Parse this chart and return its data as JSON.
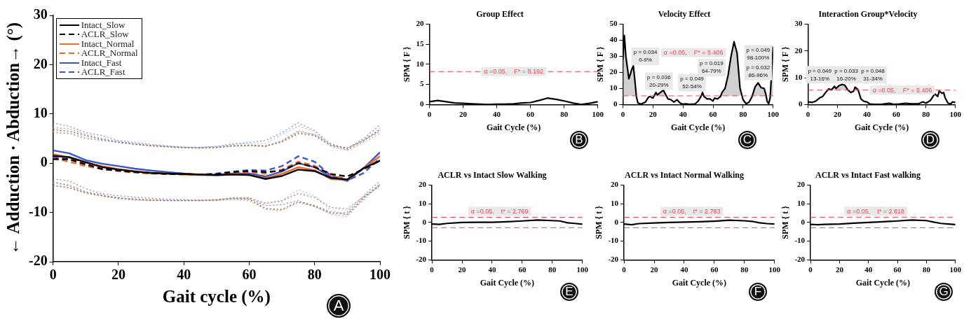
{
  "chart_data": [
    {
      "type": "line",
      "xlabel": "Gait cycle (%)",
      "ylabel": "← Adduction · Abduction→ (°)",
      "xlim": [
        0,
        100
      ],
      "ylim": [
        -20,
        30
      ],
      "xticks": [
        0,
        20,
        40,
        60,
        80,
        100
      ],
      "yticks": [
        -20,
        -10,
        0,
        10,
        20,
        30
      ],
      "legend": "top left",
      "annotations": [
        "A"
      ],
      "x": [
        0,
        5,
        10,
        15,
        20,
        25,
        30,
        35,
        40,
        45,
        50,
        55,
        60,
        65,
        70,
        75,
        80,
        85,
        90,
        95,
        100
      ],
      "series": [
        {
          "name": "Intact_Slow",
          "color": "#000000",
          "line_style": "solid",
          "values": [
            1.5,
            1.2,
            0.2,
            -0.8,
            -1.3,
            -1.7,
            -2.0,
            -2.1,
            -2.2,
            -2.3,
            -2.4,
            -2.3,
            -2.4,
            -3.2,
            -2.6,
            -1.3,
            -1.6,
            -3.0,
            -3.3,
            -1.0,
            0.5
          ]
        },
        {
          "name": "ACLR_Slow",
          "color": "#000000",
          "line_style": "dashed",
          "values": [
            0.8,
            0.8,
            -0.2,
            -1.2,
            -1.5,
            -1.8,
            -2.0,
            -2.2,
            -2.2,
            -2.3,
            -2.2,
            -1.8,
            -1.6,
            -1.8,
            -1.5,
            0.0,
            -0.8,
            -2.2,
            -2.7,
            -1.2,
            0.5
          ]
        },
        {
          "name": "Intact_Normal",
          "color": "#ee6a1e",
          "line_style": "solid",
          "values": [
            1.8,
            1.2,
            0.2,
            -0.6,
            -1.2,
            -1.6,
            -2.0,
            -2.1,
            -2.3,
            -2.4,
            -2.5,
            -2.3,
            -2.4,
            -3.0,
            -2.2,
            -0.8,
            -1.4,
            -3.2,
            -3.4,
            -1.0,
            1.4
          ]
        },
        {
          "name": "ACLR_Normal",
          "color": "#ee6a1e",
          "line_style": "dashed",
          "values": [
            1.0,
            0.3,
            -0.6,
            -1.2,
            -1.6,
            -1.9,
            -2.1,
            -2.2,
            -2.3,
            -2.3,
            -2.2,
            -1.9,
            -1.8,
            -2.1,
            -1.3,
            0.3,
            -0.5,
            -2.4,
            -3.3,
            -1.0,
            0.6
          ]
        },
        {
          "name": "Intact_Fast",
          "color": "#3a56c8",
          "line_style": "solid",
          "values": [
            2.6,
            2.0,
            0.6,
            -0.1,
            -0.6,
            -1.1,
            -1.5,
            -1.8,
            -2.1,
            -2.3,
            -2.3,
            -2.1,
            -2.1,
            -2.7,
            -1.7,
            0.0,
            -0.8,
            -2.8,
            -3.6,
            -1.0,
            2.2
          ]
        },
        {
          "name": "ACLR_Fast",
          "color": "#3a56c8",
          "line_style": "dashed",
          "values": [
            1.2,
            0.8,
            -0.4,
            -1.2,
            -1.5,
            -1.8,
            -2.0,
            -2.2,
            -2.2,
            -2.3,
            -2.1,
            -1.7,
            -1.4,
            -1.5,
            -0.6,
            1.4,
            0.3,
            -2.5,
            -3.5,
            -2.0,
            1.0
          ]
        },
        {
          "color": "#6e6e6e",
          "line_style": "dotted",
          "values": [
            6.8,
            6.5,
            5.6,
            4.8,
            4.3,
            3.9,
            3.6,
            3.4,
            3.2,
            3.1,
            3.2,
            3.5,
            3.7,
            3.5,
            4.3,
            6.0,
            5.6,
            3.6,
            3.1,
            4.6,
            6.8
          ]
        },
        {
          "color": "#6e6e6e",
          "line_style": "dotted",
          "values": [
            -4.5,
            -5.0,
            -6.0,
            -6.6,
            -7.0,
            -7.4,
            -7.5,
            -7.6,
            -7.6,
            -7.6,
            -7.5,
            -7.2,
            -7.3,
            -9.2,
            -9.4,
            -7.8,
            -8.6,
            -10.0,
            -10.4,
            -7.0,
            -4.5
          ]
        },
        {
          "color": "#a0a0a0",
          "line_style": "dotted",
          "values": [
            6.2,
            6.0,
            5.0,
            4.6,
            4.2,
            3.8,
            3.5,
            3.3,
            3.1,
            3.2,
            3.3,
            3.6,
            3.6,
            3.4,
            4.6,
            6.4,
            5.8,
            4.0,
            2.8,
            4.8,
            6.4
          ]
        },
        {
          "color": "#a0a0a0",
          "line_style": "dotted",
          "values": [
            -3.8,
            -4.6,
            -5.8,
            -6.4,
            -7.2,
            -7.2,
            -7.4,
            -7.5,
            -7.5,
            -7.5,
            -7.4,
            -7.0,
            -7.0,
            -8.2,
            -7.6,
            -6.2,
            -7.0,
            -9.0,
            -9.2,
            -6.8,
            -4.2
          ]
        },
        {
          "color": "#f0a070",
          "line_style": "dotted",
          "values": [
            7.2,
            7.0,
            5.8,
            5.0,
            4.2,
            3.8,
            3.5,
            3.3,
            3.1,
            3.0,
            3.1,
            3.4,
            3.5,
            3.4,
            4.4,
            6.6,
            5.8,
            3.4,
            2.6,
            4.2,
            6.0
          ]
        },
        {
          "color": "#f0a070",
          "line_style": "dotted",
          "values": [
            -3.8,
            -4.4,
            -5.8,
            -6.6,
            -7.2,
            -7.5,
            -7.6,
            -7.6,
            -7.6,
            -7.6,
            -7.6,
            -7.4,
            -7.6,
            -9.4,
            -9.6,
            -8.0,
            -8.8,
            -10.4,
            -10.8,
            -7.2,
            -4.4
          ]
        },
        {
          "color": "#f8c090",
          "line_style": "dotted",
          "values": [
            6.4,
            6.2,
            5.2,
            4.6,
            4.3,
            3.9,
            3.5,
            3.3,
            3.1,
            3.1,
            3.2,
            3.5,
            3.6,
            3.5,
            4.6,
            6.2,
            5.8,
            3.8,
            2.8,
            4.6,
            6.4
          ]
        },
        {
          "color": "#f8c090",
          "line_style": "dotted",
          "values": [
            -4.6,
            -5.0,
            -6.2,
            -6.8,
            -7.2,
            -7.4,
            -7.5,
            -7.6,
            -7.6,
            -7.5,
            -7.4,
            -7.0,
            -7.0,
            -8.2,
            -7.8,
            -6.0,
            -6.8,
            -9.0,
            -9.6,
            -6.8,
            -4.8
          ]
        },
        {
          "color": "#8090e0",
          "line_style": "dotted",
          "values": [
            8.2,
            7.5,
            6.2,
            5.6,
            4.6,
            4.2,
            3.8,
            3.5,
            3.3,
            3.2,
            3.4,
            3.9,
            4.2,
            4.6,
            6.2,
            8.2,
            6.6,
            3.8,
            3.0,
            5.0,
            7.8
          ]
        },
        {
          "color": "#8090e0",
          "line_style": "dotted",
          "values": [
            -3.2,
            -3.6,
            -5.2,
            -6.2,
            -6.6,
            -6.9,
            -7.1,
            -7.3,
            -7.4,
            -7.5,
            -7.4,
            -7.1,
            -7.2,
            -8.6,
            -8.4,
            -7.6,
            -8.8,
            -10.2,
            -10.0,
            -6.6,
            -3.6
          ]
        },
        {
          "color": "#b0bcf0",
          "line_style": "dotted",
          "values": [
            7.2,
            7.0,
            5.8,
            5.0,
            4.5,
            4.0,
            3.6,
            3.4,
            3.2,
            3.2,
            3.4,
            3.8,
            4.0,
            4.0,
            5.8,
            7.6,
            6.4,
            3.6,
            2.6,
            4.4,
            7.2
          ]
        },
        {
          "color": "#b0bcf0",
          "line_style": "dotted",
          "values": [
            -4.0,
            -4.6,
            -6.0,
            -6.6,
            -7.0,
            -7.3,
            -7.5,
            -7.6,
            -7.6,
            -7.6,
            -7.5,
            -7.1,
            -7.2,
            -8.0,
            -7.6,
            -5.4,
            -6.6,
            -9.6,
            -10.4,
            -7.6,
            -4.2
          ]
        }
      ]
    },
    {
      "type": "line",
      "title": "Group Effect",
      "xlabel": "Gait Cycle (%)",
      "ylabel": "SPM { F }",
      "xlim": [
        0,
        100
      ],
      "ylim": [
        0,
        20
      ],
      "xticks": [
        0,
        20,
        40,
        60,
        80,
        100
      ],
      "yticks": [
        0,
        5,
        10,
        15,
        20
      ],
      "annotations": [
        "B"
      ],
      "x": [
        0,
        5,
        10,
        15,
        20,
        25,
        30,
        35,
        40,
        45,
        50,
        55,
        60,
        65,
        70,
        75,
        80,
        85,
        90,
        95,
        100
      ],
      "series": [
        {
          "color": "#000000",
          "values": [
            0.7,
            1.0,
            0.7,
            0.4,
            0.3,
            0.2,
            0.1,
            0.0,
            0.1,
            0.1,
            0.2,
            0.4,
            0.5,
            1.0,
            1.6,
            1.3,
            0.9,
            0.4,
            0.0,
            0.3,
            0.7
          ]
        }
      ],
      "ref_lines": [
        {
          "axis": "y",
          "value": 8.192,
          "label": "α =0.05,    F* = 8.192",
          "color": "#ee4455",
          "line_style": "dashed"
        }
      ]
    },
    {
      "type": "line",
      "title": "Velocity Effect",
      "xlabel": "Gait Cycle (%)",
      "ylabel": "SPM { F }",
      "xlim": [
        0,
        100
      ],
      "ylim": [
        0,
        50
      ],
      "xticks": [
        0,
        20,
        40,
        60,
        80,
        100
      ],
      "yticks": [
        0,
        10,
        20,
        30,
        40,
        50
      ],
      "x": [
        0,
        1,
        2,
        4,
        6,
        7,
        8,
        9,
        10,
        12,
        15,
        17,
        18,
        20,
        22,
        23,
        25,
        27,
        28,
        30,
        32,
        34,
        36,
        38,
        40,
        42,
        44,
        48,
        50,
        52,
        53,
        54,
        56,
        58,
        60,
        61,
        63,
        65,
        66,
        68,
        70,
        72,
        74,
        76,
        78,
        80,
        82,
        84,
        86,
        88,
        90,
        91,
        92,
        94,
        95,
        96,
        97,
        98,
        100
      ],
      "series": [
        {
          "color": "#000000",
          "values": [
            28,
            43,
            30,
            16,
            22,
            24,
            15,
            5,
            1,
            0.3,
            1.5,
            4.5,
            5,
            4,
            7.5,
            6,
            7.5,
            9,
            7,
            3.5,
            3,
            1.5,
            3,
            1,
            0.2,
            0.5,
            0.1,
            0.3,
            2,
            5,
            7.5,
            5,
            3.5,
            3.5,
            2.2,
            4,
            3.5,
            5,
            7.5,
            10,
            18,
            30,
            39,
            32,
            10,
            3,
            0.5,
            1.5,
            5,
            11,
            13.5,
            12,
            10.5,
            10,
            7,
            2,
            0.5,
            4,
            36
          ]
        }
      ],
      "ref_lines": [
        {
          "axis": "y",
          "value": 5.406,
          "label": "α =0.05,    F* = 5.406",
          "color": "#ee4455",
          "line_style": "dashed"
        }
      ],
      "annotations": [
        "C",
        "p = 0.034\n0-9%",
        "p = 0.036\n20-29%",
        "p = 0.049\n52-54%",
        "p = 0.019\n64-79%",
        "p = 0.049\n98-100%",
        "p = 0.032\n86-96%"
      ]
    },
    {
      "type": "line",
      "title": "Interaction Group*Velocity",
      "xlabel": "Gait Cycle (%)",
      "ylabel": "SPM { F }",
      "xlim": [
        0,
        100
      ],
      "ylim": [
        0,
        30
      ],
      "xticks": [
        0,
        20,
        40,
        60,
        80,
        100
      ],
      "yticks": [
        0,
        10,
        20,
        30
      ],
      "x": [
        0,
        3,
        5,
        8,
        10,
        12,
        14,
        16,
        18,
        19,
        21,
        23,
        25,
        27,
        29,
        31,
        32,
        34,
        36,
        38,
        40,
        42,
        45,
        50,
        55,
        58,
        62,
        66,
        70,
        75,
        78,
        80,
        83,
        86,
        88,
        89,
        91,
        92,
        93,
        95,
        97,
        98,
        100
      ],
      "series": [
        {
          "color": "#000000",
          "values": [
            1,
            0.8,
            1.2,
            2.5,
            3,
            4.5,
            5.8,
            5.5,
            6.8,
            6,
            7,
            7.5,
            7.2,
            5.5,
            4.5,
            5,
            6.5,
            5.5,
            2,
            1.2,
            1,
            0.2,
            0.1,
            0.1,
            0.5,
            0.1,
            0.2,
            0.5,
            0.3,
            0.3,
            1,
            0.5,
            1.5,
            4,
            3,
            5,
            4.2,
            4.5,
            2.5,
            0.5,
            0.3,
            1,
            0.8
          ]
        }
      ],
      "ref_lines": [
        {
          "axis": "y",
          "value": 5.406,
          "label": "α =0.05,    F* = 5.406",
          "color": "#ee4455",
          "line_style": "dashed"
        }
      ],
      "annotations": [
        "D",
        "p = 0.049\n13-16%",
        "p = 0.033\n16-20%",
        "p = 0.048\n31-34%"
      ]
    },
    {
      "type": "line",
      "title": "ACLR vs Intact Slow Walking",
      "xlabel": "Gait Cycle (%)",
      "ylabel": "SPM { t }",
      "xlim": [
        0,
        100
      ],
      "ylim": [
        -20,
        20
      ],
      "xticks": [
        0,
        20,
        40,
        60,
        80,
        100
      ],
      "yticks": [
        -20,
        -10,
        0,
        10,
        20
      ],
      "annotations": [
        "E"
      ],
      "x": [
        0,
        5,
        10,
        20,
        30,
        40,
        50,
        60,
        70,
        80,
        85,
        90,
        95,
        100
      ],
      "series": [
        {
          "color": "#000000",
          "values": [
            -0.8,
            -1.0,
            -0.5,
            0,
            0.1,
            0.1,
            0.4,
            0.8,
            1.3,
            1.0,
            0.8,
            -0.2,
            -0.5,
            -0.9
          ]
        }
      ],
      "ref_lines": [
        {
          "axis": "y",
          "value": 2.769,
          "label": "α =0.05,    t* = 2.769",
          "color": "#ee4455",
          "line_style": "dashed"
        },
        {
          "axis": "y",
          "value": -2.769,
          "color": "#ee4455",
          "line_style": "dashed"
        }
      ]
    },
    {
      "type": "line",
      "title": "ACLR vs Intact Normal Walking",
      "xlabel": "Gait Cycle (%)",
      "ylabel": "SPM { t }",
      "xlim": [
        0,
        100
      ],
      "ylim": [
        -20,
        20
      ],
      "xticks": [
        0,
        20,
        40,
        60,
        80,
        100
      ],
      "yticks": [
        -20,
        -10,
        0,
        10,
        20
      ],
      "annotations": [
        "F"
      ],
      "x": [
        0,
        5,
        10,
        20,
        30,
        40,
        50,
        60,
        70,
        80,
        85,
        90,
        95,
        100
      ],
      "series": [
        {
          "color": "#000000",
          "values": [
            -0.8,
            -1.2,
            -0.6,
            -0.3,
            0,
            0.2,
            0.4,
            0.7,
            1.2,
            0.9,
            0.6,
            -0.2,
            -0.6,
            -0.8
          ]
        }
      ],
      "ref_lines": [
        {
          "axis": "y",
          "value": 2.783,
          "label": "α =0.05,    t* = 2.783",
          "color": "#ee4455",
          "line_style": "dashed"
        },
        {
          "axis": "y",
          "value": -2.783,
          "color": "#ee4455",
          "line_style": "dashed"
        }
      ]
    },
    {
      "type": "line",
      "title": "ACLR vs Intact Fast walking",
      "xlabel": "Gait Cycle (%)",
      "ylabel": "SPM { t }",
      "xlim": [
        0,
        100
      ],
      "ylim": [
        -20,
        20
      ],
      "xticks": [
        0,
        20,
        40,
        60,
        80,
        100
      ],
      "yticks": [
        -20,
        -10,
        0,
        10,
        20
      ],
      "annotations": [
        "G"
      ],
      "x": [
        0,
        5,
        10,
        20,
        30,
        40,
        50,
        60,
        70,
        80,
        85,
        90,
        95,
        100
      ],
      "series": [
        {
          "color": "#000000",
          "values": [
            -1,
            -1.2,
            -1.0,
            -0.8,
            -0.4,
            0,
            0.4,
            0.8,
            1.3,
            1.0,
            0.2,
            -0.5,
            -0.8,
            -1.1
          ]
        }
      ],
      "ref_lines": [
        {
          "axis": "y",
          "value": 2.818,
          "label": "α =0.05,    t* = 2.818",
          "color": "#ee4455",
          "line_style": "dashed"
        },
        {
          "axis": "y",
          "value": -2.818,
          "color": "#ee4455",
          "line_style": "dashed"
        }
      ]
    }
  ]
}
